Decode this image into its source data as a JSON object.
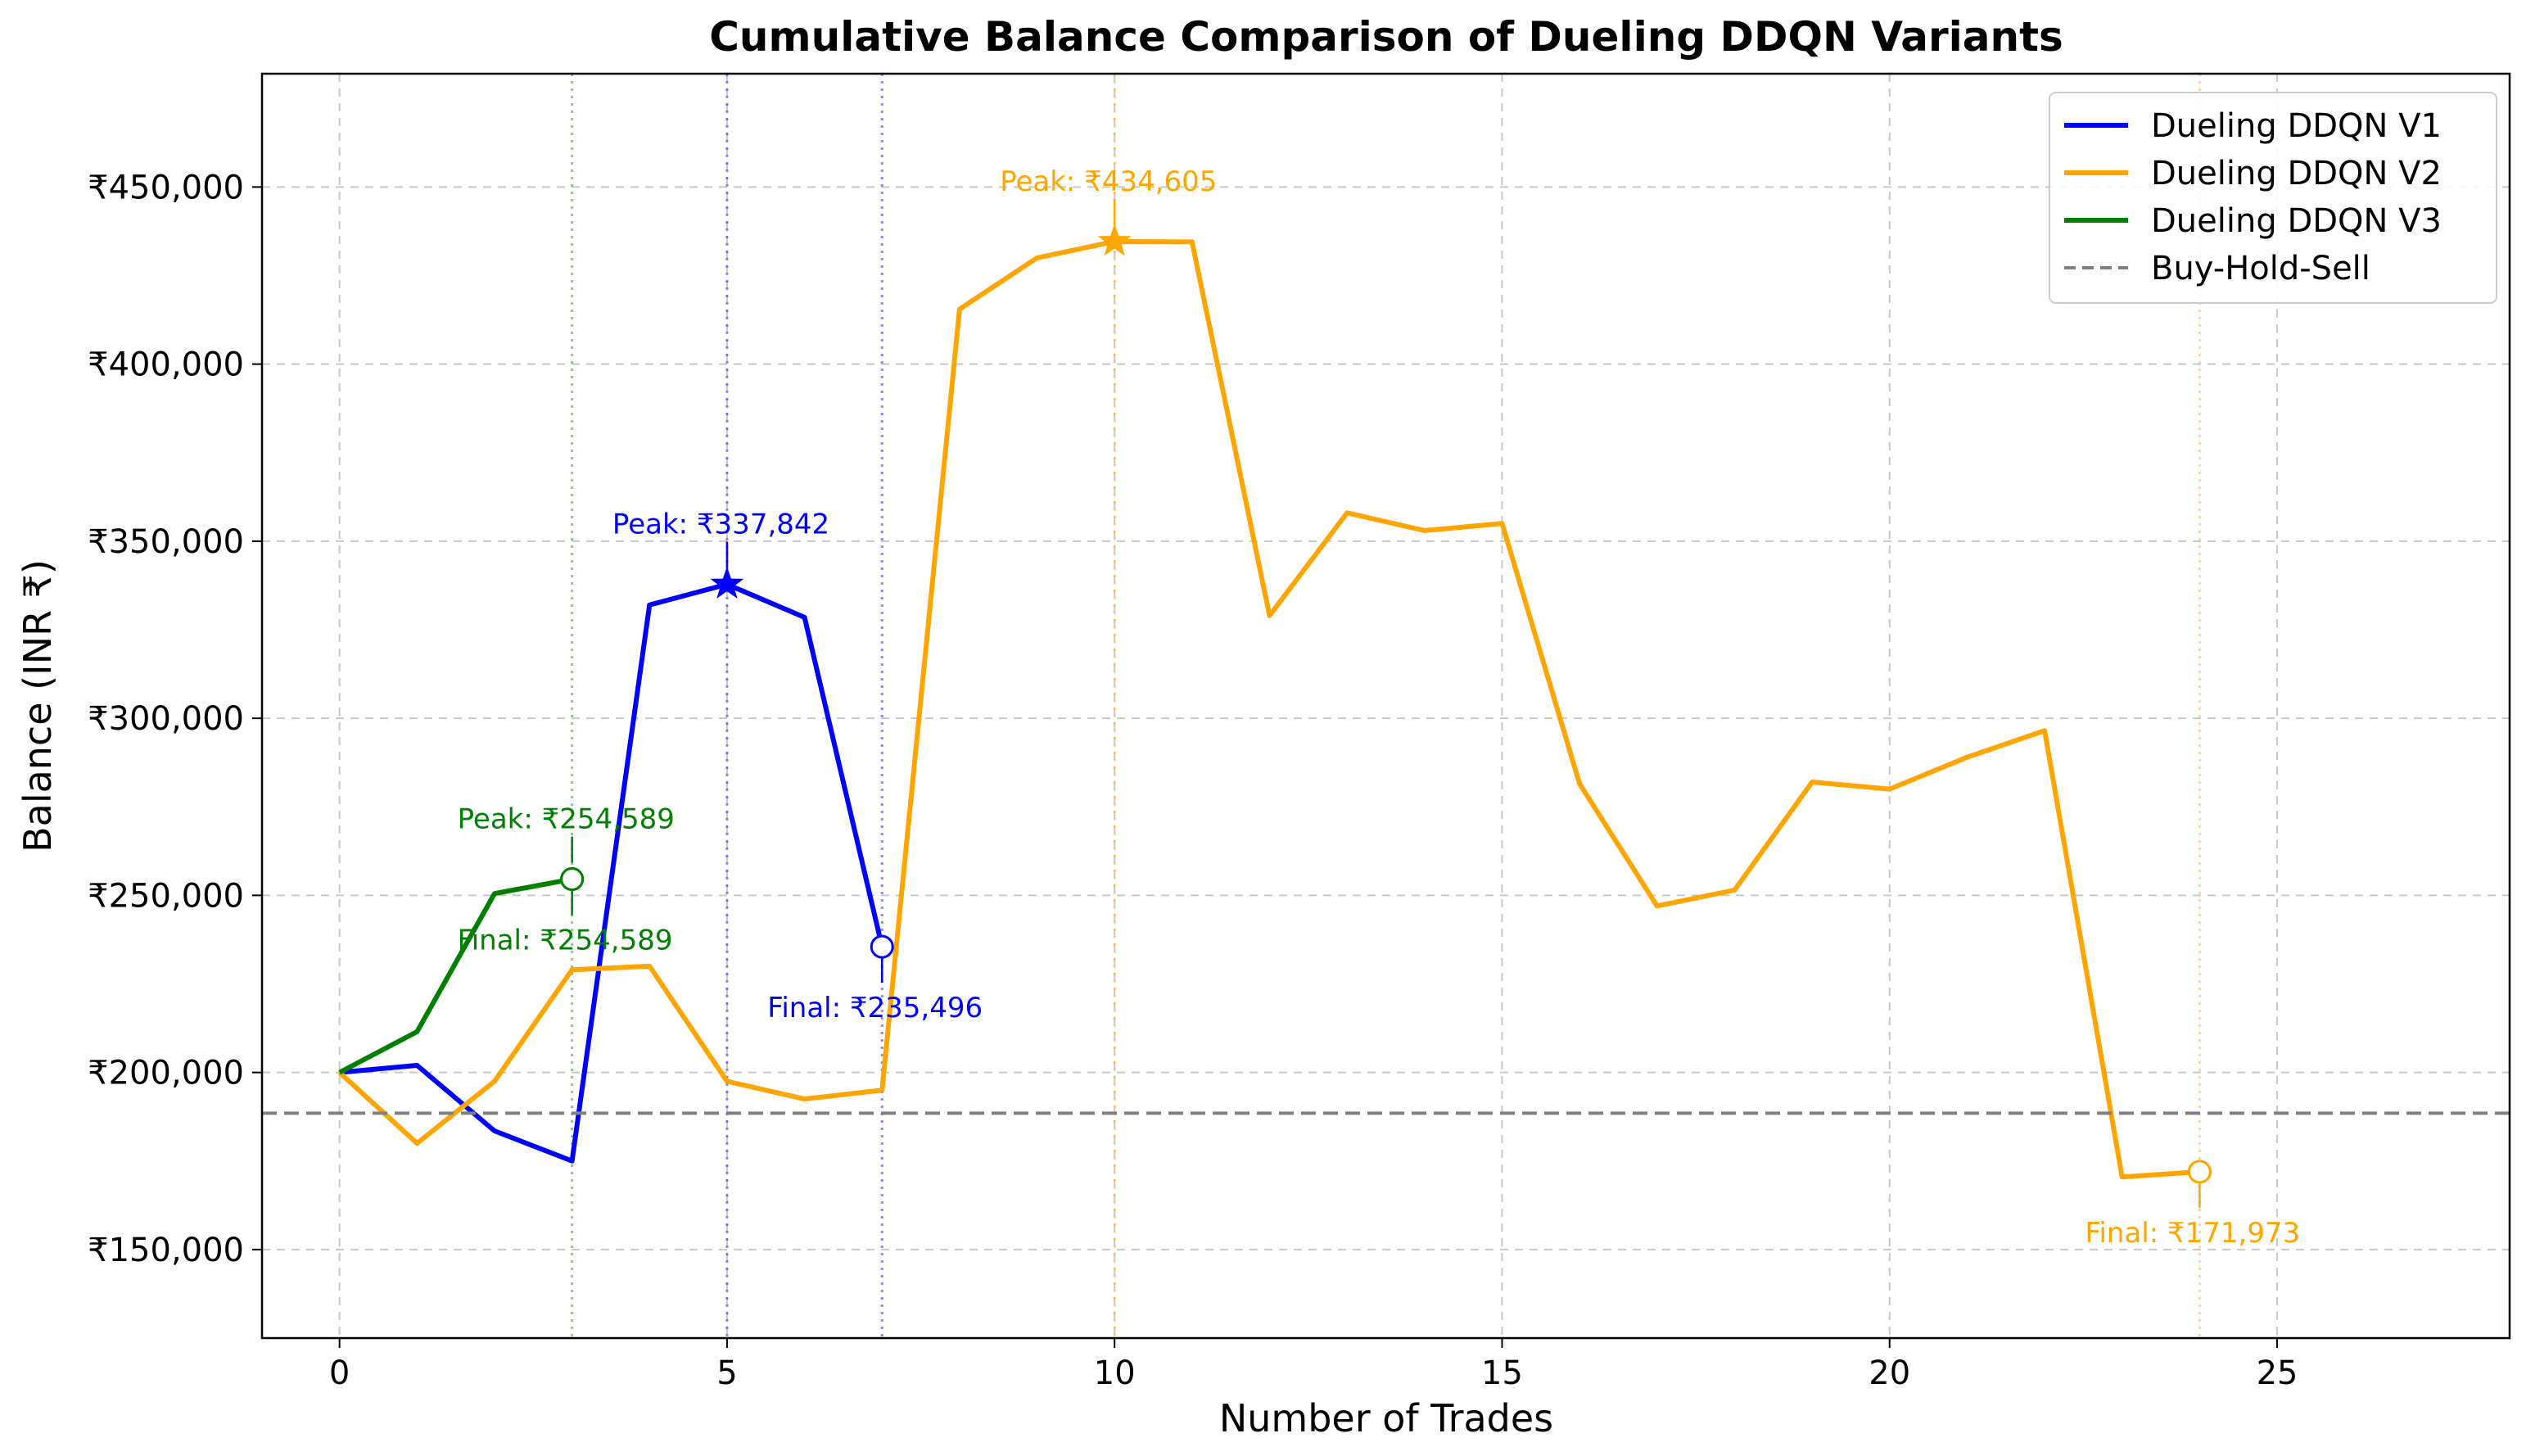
{
  "chart_data": {
    "type": "line",
    "title": "Cumulative Balance Comparison of Dueling DDQN Variants",
    "xlabel": "Number of Trades",
    "ylabel": "Balance (INR ₹)",
    "xlim": [
      -1,
      28
    ],
    "ylim": [
      125000,
      482000
    ],
    "x_ticks": [
      0,
      5,
      10,
      15,
      20,
      25
    ],
    "x_tick_labels": [
      "0",
      "5",
      "10",
      "15",
      "20",
      "25"
    ],
    "y_ticks": [
      150000,
      200000,
      250000,
      300000,
      350000,
      400000,
      450000
    ],
    "y_tick_labels": [
      "₹150,000",
      "₹200,000",
      "₹250,000",
      "₹300,000",
      "₹350,000",
      "₹400,000",
      "₹450,000"
    ],
    "grid": true,
    "legend_position": "top-right",
    "series": [
      {
        "name": "Dueling DDQN V1",
        "color": "#0000ff",
        "x": [
          0,
          1,
          2,
          3,
          4,
          5,
          6,
          7
        ],
        "values": [
          200000,
          202000,
          183500,
          175000,
          332000,
          337842,
          328500,
          235496
        ]
      },
      {
        "name": "Dueling DDQN V2",
        "color": "#ffa500",
        "x": [
          0,
          1,
          2,
          3,
          4,
          5,
          6,
          7,
          8,
          9,
          10,
          11,
          12,
          13,
          14,
          15,
          16,
          17,
          18,
          19,
          20,
          21,
          22,
          23,
          24
        ],
        "values": [
          200000,
          180000,
          197500,
          229000,
          230000,
          197500,
          192500,
          195000,
          415500,
          430000,
          434605,
          434500,
          329000,
          358000,
          353000,
          355000,
          281500,
          247000,
          251500,
          282000,
          280000,
          289000,
          296500,
          170500,
          171973
        ]
      },
      {
        "name": "Dueling DDQN V3",
        "color": "#008000",
        "x": [
          0,
          1,
          2,
          3
        ],
        "values": [
          200000,
          211500,
          250500,
          254589
        ]
      },
      {
        "name": "Buy-Hold-Sell",
        "color": "#808080",
        "style": "dashed",
        "constant": 188500
      }
    ],
    "annotations": [
      {
        "series": "Dueling DDQN V1",
        "kind": "peak",
        "x": 5,
        "y": 337842,
        "text": "Peak: ₹337,842",
        "color": "#0000ff"
      },
      {
        "series": "Dueling DDQN V1",
        "kind": "final",
        "x": 7,
        "y": 235496,
        "text": "Final: ₹235,496",
        "color": "#0000ff"
      },
      {
        "series": "Dueling DDQN V2",
        "kind": "peak",
        "x": 10,
        "y": 434605,
        "text": "Peak: ₹434,605",
        "color": "#ffa500"
      },
      {
        "series": "Dueling DDQN V2",
        "kind": "final",
        "x": 24,
        "y": 171973,
        "text": "Final: ₹171,973",
        "color": "#ffa500"
      },
      {
        "series": "Dueling DDQN V3",
        "kind": "peak",
        "x": 3,
        "y": 254589,
        "text": "Peak: ₹254,589",
        "color": "#008000"
      },
      {
        "series": "Dueling DDQN V3",
        "kind": "final",
        "x": 3,
        "y": 254589,
        "text": "Final: ₹254,589",
        "color": "#008000"
      }
    ],
    "vertical_markers": [
      {
        "x": 3,
        "color": "#008000"
      },
      {
        "x": 5,
        "color": "#0000ff"
      },
      {
        "x": 7,
        "color": "#0000ff"
      },
      {
        "x": 10,
        "color": "#ffa500"
      },
      {
        "x": 24,
        "color": "#ffa500"
      }
    ]
  }
}
